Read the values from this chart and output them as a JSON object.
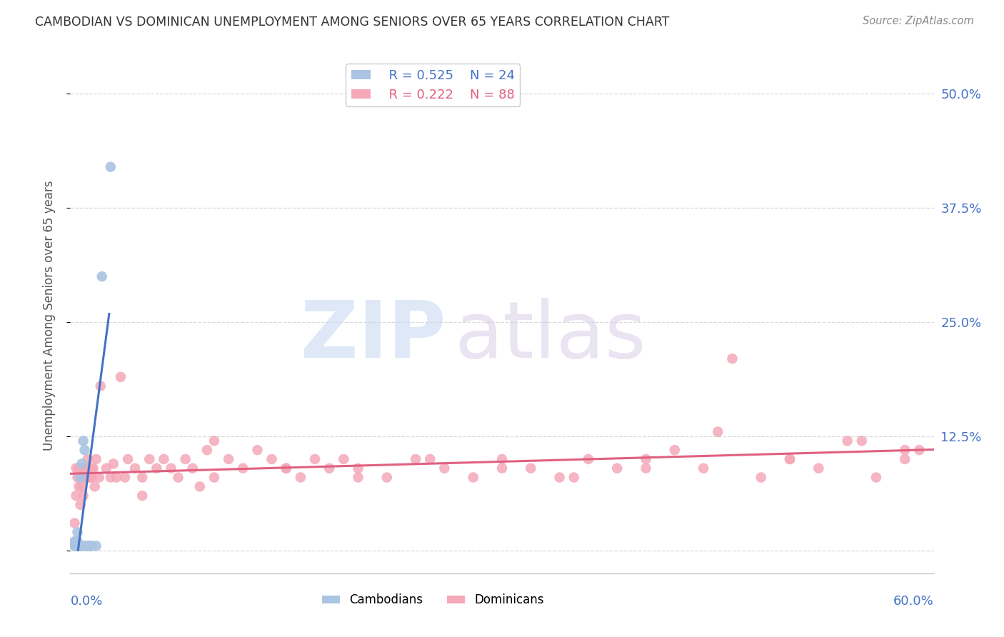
{
  "title": "CAMBODIAN VS DOMINICAN UNEMPLOYMENT AMONG SENIORS OVER 65 YEARS CORRELATION CHART",
  "source": "Source: ZipAtlas.com",
  "ylabel": "Unemployment Among Seniors over 65 years",
  "xlim": [
    0.0,
    0.6
  ],
  "ylim": [
    -0.025,
    0.54
  ],
  "yticks": [
    0.0,
    0.125,
    0.25,
    0.375,
    0.5
  ],
  "ytick_labels": [
    "",
    "12.5%",
    "25.0%",
    "37.5%",
    "50.0%"
  ],
  "xtick_left": "0.0%",
  "xtick_right": "60.0%",
  "blue_scatter_color": "#aac4e2",
  "blue_line_color": "#4472c4",
  "blue_dash_color": "#aac4e2",
  "pink_scatter_color": "#f4a8b8",
  "pink_line_color": "#e06080",
  "legend_blue_R": "R = 0.525",
  "legend_blue_N": "N = 24",
  "legend_pink_R": "R = 0.222",
  "legend_pink_N": "N = 88",
  "grid_color": "#d8d8d8",
  "watermark_zip_color": "#c8daf0",
  "watermark_atlas_color": "#d8cce8",
  "cam_x": [
    0.003,
    0.003,
    0.004,
    0.004,
    0.005,
    0.005,
    0.005,
    0.006,
    0.006,
    0.007,
    0.007,
    0.008,
    0.008,
    0.009,
    0.01,
    0.01,
    0.011,
    0.012,
    0.013,
    0.014,
    0.015,
    0.018,
    0.022,
    0.028
  ],
  "cam_y": [
    0.005,
    0.01,
    0.005,
    0.01,
    0.005,
    0.01,
    0.02,
    0.005,
    0.005,
    0.005,
    0.08,
    0.005,
    0.095,
    0.12,
    0.005,
    0.11,
    0.005,
    0.005,
    0.005,
    0.005,
    0.005,
    0.005,
    0.3,
    0.42
  ],
  "dom_x": [
    0.003,
    0.004,
    0.004,
    0.005,
    0.005,
    0.006,
    0.006,
    0.007,
    0.007,
    0.008,
    0.008,
    0.009,
    0.009,
    0.01,
    0.01,
    0.011,
    0.012,
    0.012,
    0.013,
    0.014,
    0.015,
    0.015,
    0.016,
    0.017,
    0.018,
    0.02,
    0.021,
    0.025,
    0.028,
    0.03,
    0.032,
    0.035,
    0.038,
    0.04,
    0.045,
    0.05,
    0.055,
    0.06,
    0.065,
    0.07,
    0.075,
    0.08,
    0.085,
    0.09,
    0.095,
    0.1,
    0.11,
    0.12,
    0.13,
    0.14,
    0.15,
    0.16,
    0.17,
    0.18,
    0.19,
    0.2,
    0.22,
    0.24,
    0.26,
    0.28,
    0.3,
    0.32,
    0.34,
    0.36,
    0.38,
    0.4,
    0.42,
    0.44,
    0.46,
    0.48,
    0.5,
    0.52,
    0.54,
    0.56,
    0.58,
    0.59,
    0.05,
    0.1,
    0.15,
    0.2,
    0.25,
    0.3,
    0.35,
    0.4,
    0.45,
    0.5,
    0.55,
    0.58
  ],
  "dom_y": [
    0.03,
    0.06,
    0.09,
    0.005,
    0.08,
    0.07,
    0.09,
    0.05,
    0.08,
    0.07,
    0.09,
    0.06,
    0.08,
    0.08,
    0.09,
    0.08,
    0.1,
    0.08,
    0.09,
    0.08,
    0.09,
    0.08,
    0.09,
    0.07,
    0.1,
    0.08,
    0.18,
    0.09,
    0.08,
    0.095,
    0.08,
    0.19,
    0.08,
    0.1,
    0.09,
    0.08,
    0.1,
    0.09,
    0.1,
    0.09,
    0.08,
    0.1,
    0.09,
    0.07,
    0.11,
    0.08,
    0.1,
    0.09,
    0.11,
    0.1,
    0.09,
    0.08,
    0.1,
    0.09,
    0.1,
    0.09,
    0.08,
    0.1,
    0.09,
    0.08,
    0.1,
    0.09,
    0.08,
    0.1,
    0.09,
    0.09,
    0.11,
    0.09,
    0.21,
    0.08,
    0.1,
    0.09,
    0.12,
    0.08,
    0.1,
    0.11,
    0.06,
    0.12,
    0.09,
    0.08,
    0.1,
    0.09,
    0.08,
    0.1,
    0.13,
    0.1,
    0.12,
    0.11
  ]
}
